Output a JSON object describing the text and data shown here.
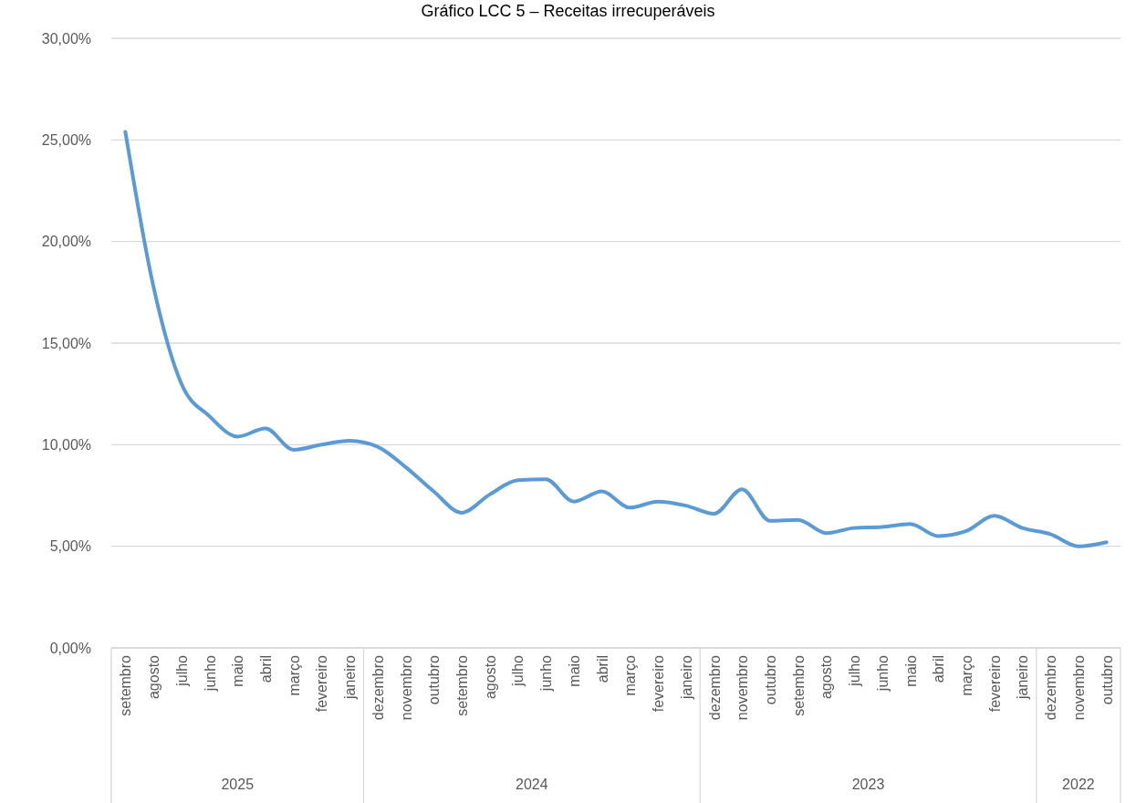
{
  "chart_data": {
    "type": "line",
    "title": "Gráfico LCC 5 – Receitas irrecuperáveis",
    "categories": [
      "setembro",
      "agosto",
      "julho",
      "junho",
      "maio",
      "abril",
      "março",
      "fevereiro",
      "janeiro",
      "dezembro",
      "novembro",
      "outubro",
      "setembro",
      "agosto",
      "julho",
      "junho",
      "maio",
      "abril",
      "março",
      "fevereiro",
      "janeiro",
      "dezembro",
      "novembro",
      "outubro",
      "setembro",
      "agosto",
      "julho",
      "junho",
      "maio",
      "abril",
      "março",
      "fevereiro",
      "janeiro",
      "dezembro",
      "novembro",
      "outubro"
    ],
    "series": [
      {
        "color": "#5b9bd5",
        "values": [
          25.4,
          17.8,
          13.0,
          11.4,
          10.4,
          10.8,
          9.75,
          10.0,
          10.2,
          9.9,
          8.9,
          7.7,
          6.65,
          7.55,
          8.25,
          8.3,
          7.2,
          7.7,
          6.9,
          7.2,
          7.0,
          6.6,
          7.8,
          6.25,
          6.3,
          5.65,
          5.9,
          5.95,
          6.1,
          5.5,
          5.75,
          6.5,
          5.9,
          5.6,
          5.0,
          5.2
        ]
      }
    ],
    "ylim": [
      0,
      30
    ],
    "yticks": [
      {
        "value": 0,
        "label": "0,00%"
      },
      {
        "value": 5,
        "label": "5,00%"
      },
      {
        "value": 10,
        "label": "10,00%"
      },
      {
        "value": 15,
        "label": "15,00%"
      },
      {
        "value": 20,
        "label": "20,00%"
      },
      {
        "value": 25,
        "label": "25,00%"
      },
      {
        "value": 30,
        "label": "30,00%"
      }
    ],
    "grid": "y",
    "marker": "none",
    "line_style": "solid",
    "annotations": [
      "2025",
      "2024",
      "2023",
      "2022"
    ]
  }
}
